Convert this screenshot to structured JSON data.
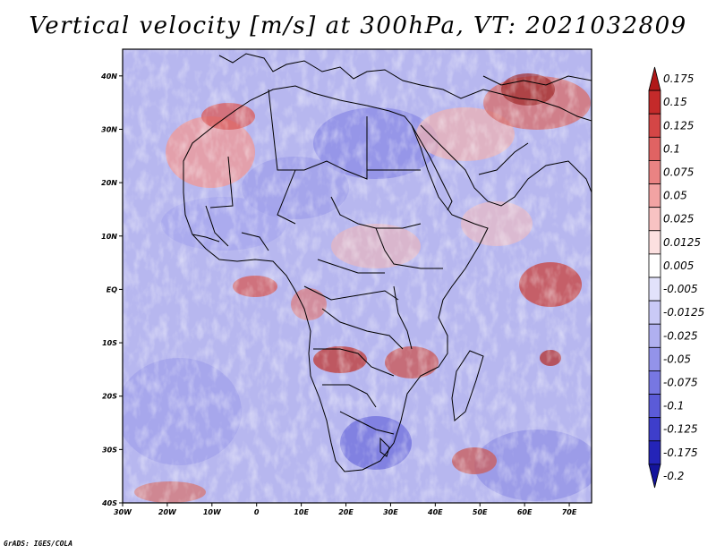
{
  "title": "Vertical velocity [m/s] at 300hPa, VT: 2021032809",
  "footer": "GrADS: IGES/COLA",
  "map": {
    "lat_range": [
      -40,
      45
    ],
    "lon_range": [
      -30,
      75
    ],
    "lat_ticks": [
      {
        "value": 40,
        "label": "40N"
      },
      {
        "value": 30,
        "label": "30N"
      },
      {
        "value": 20,
        "label": "20N"
      },
      {
        "value": 10,
        "label": "10N"
      },
      {
        "value": 0,
        "label": "EQ"
      },
      {
        "value": -10,
        "label": "10S"
      },
      {
        "value": -20,
        "label": "20S"
      },
      {
        "value": -30,
        "label": "30S"
      },
      {
        "value": -40,
        "label": "40S"
      }
    ],
    "lon_ticks": [
      {
        "value": -30,
        "label": "30W"
      },
      {
        "value": -20,
        "label": "20W"
      },
      {
        "value": -10,
        "label": "10W"
      },
      {
        "value": 0,
        "label": "0"
      },
      {
        "value": 10,
        "label": "10E"
      },
      {
        "value": 20,
        "label": "20E"
      },
      {
        "value": 30,
        "label": "30E"
      },
      {
        "value": 40,
        "label": "40E"
      },
      {
        "value": 50,
        "label": "50E"
      },
      {
        "value": 60,
        "label": "60E"
      },
      {
        "value": 70,
        "label": "70E"
      }
    ]
  },
  "colorbar": {
    "labels": [
      "0.175",
      "0.15",
      "0.125",
      "0.1",
      "0.075",
      "0.05",
      "0.025",
      "0.0125",
      "0.005",
      "-0.005",
      "-0.0125",
      "-0.025",
      "-0.05",
      "-0.075",
      "-0.1",
      "-0.125",
      "-0.175",
      "-0.2"
    ],
    "colors": [
      "#b01818",
      "#c42a2a",
      "#d44646",
      "#e06363",
      "#ea8383",
      "#f2a3a3",
      "#f8c3c3",
      "#fce0e0",
      "#ffffff",
      "#e2e2fb",
      "#cacaf6",
      "#b0b0f0",
      "#9393ea",
      "#7777e2",
      "#5b5bd8",
      "#3e3ecb",
      "#2424b8",
      "#14149c"
    ]
  }
}
